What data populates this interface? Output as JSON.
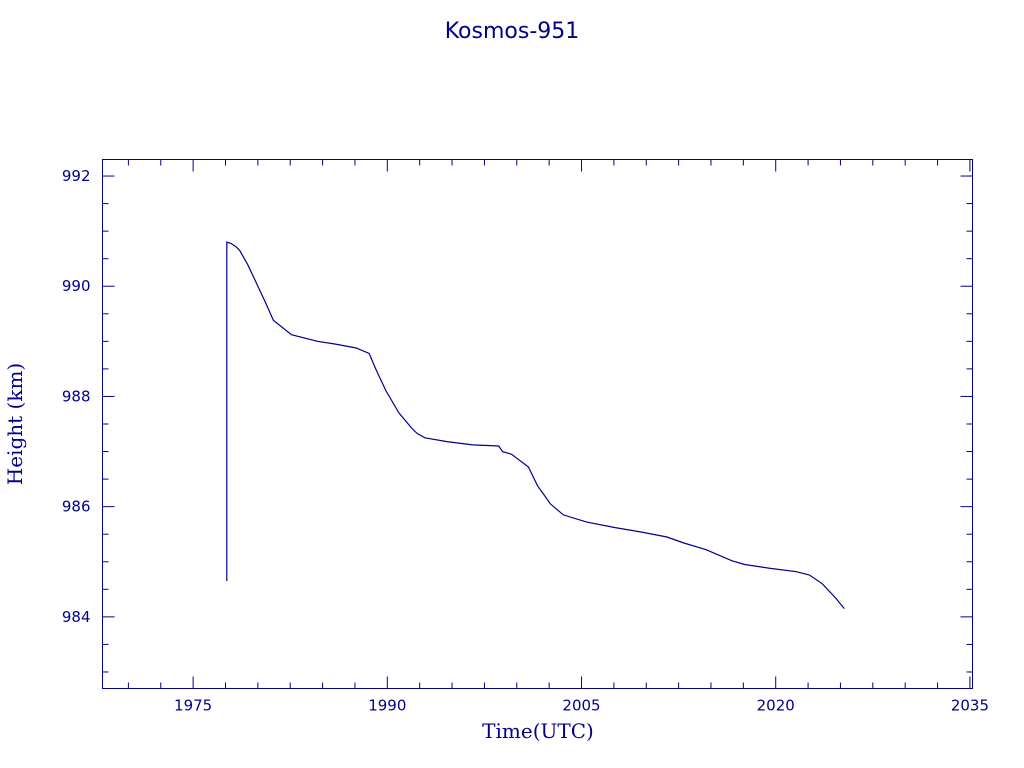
{
  "chart_data": {
    "type": "line",
    "title": "Kosmos-951",
    "xlabel": "Time(UTC)",
    "ylabel": "Height (km)",
    "xlim": [
      1968,
      2035.2
    ],
    "ylim": [
      982.7,
      992.3
    ],
    "xticks": [
      1975,
      1990,
      2005,
      2020,
      2035
    ],
    "xtick_labels": [
      "1975",
      "1990",
      "2005",
      "2020",
      "2035"
    ],
    "yticks": [
      984,
      986,
      988,
      990,
      992
    ],
    "ytick_labels": [
      "984",
      "986",
      "988",
      "990",
      "992"
    ],
    "grid": false,
    "color": "#00008b",
    "series": [
      {
        "x": [
          1977.6,
          1977.6,
          1977.9,
          1978.3,
          1978.6,
          1979.2,
          1979.9,
          1980.6,
          1981.2,
          1982.6,
          1984.6,
          1986.0,
          1987.6,
          1988.6,
          1989.1,
          1989.9,
          1990.9,
          1991.9,
          1992.3,
          1992.9,
          1994.6,
          1996.6,
          1998.6,
          1998.9,
          1999.6,
          2000.9,
          2001.6,
          2002.6,
          2003.6,
          2005.4,
          2007.6,
          2009.6,
          2011.6,
          2012.9,
          2014.6,
          2016.6,
          2017.6,
          2019.6,
          2021.6,
          2022.6,
          2023.6,
          2024.6,
          2025.3
        ],
        "y": [
          984.65,
          990.8,
          990.78,
          990.72,
          990.65,
          990.4,
          990.05,
          989.7,
          989.38,
          989.12,
          989.0,
          988.95,
          988.88,
          988.78,
          988.5,
          988.1,
          987.7,
          987.42,
          987.33,
          987.25,
          987.18,
          987.12,
          987.1,
          987.0,
          986.95,
          986.72,
          986.38,
          986.05,
          985.85,
          985.72,
          985.62,
          985.54,
          985.45,
          985.34,
          985.22,
          985.02,
          984.95,
          984.88,
          984.82,
          984.76,
          984.6,
          984.35,
          984.15
        ]
      }
    ]
  }
}
